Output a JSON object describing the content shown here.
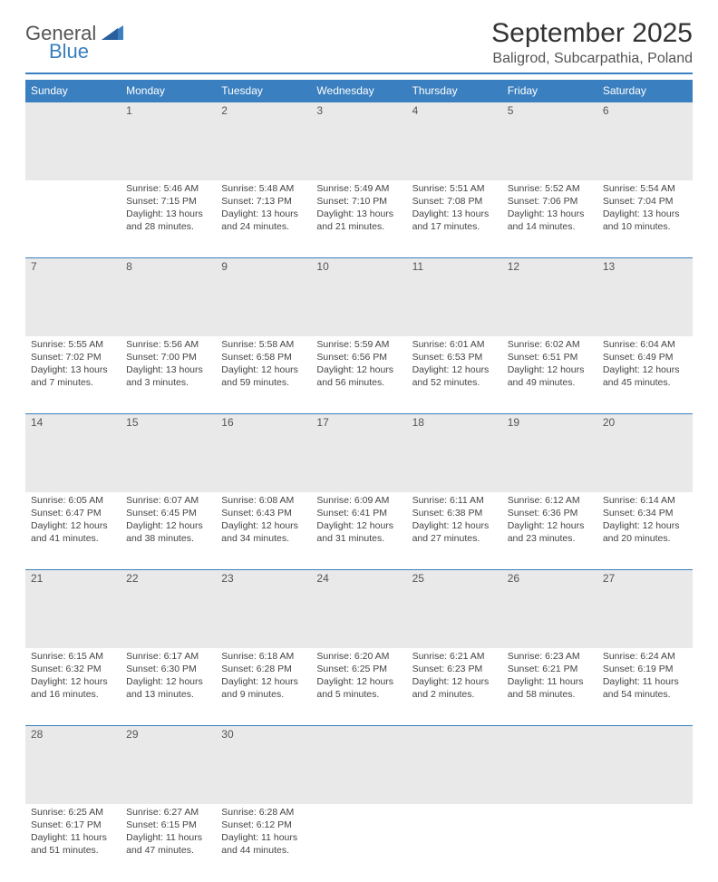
{
  "logo": {
    "text1": "General",
    "text2": "Blue"
  },
  "title": "September 2025",
  "location": "Baligrod, Subcarpathia, Poland",
  "weekdays": [
    "Sunday",
    "Monday",
    "Tuesday",
    "Wednesday",
    "Thursday",
    "Friday",
    "Saturday"
  ],
  "colors": {
    "accent": "#3a7fbf",
    "header_bg": "#3a7fbf",
    "daynum_bg": "#e9e9e9"
  },
  "weeks": [
    [
      null,
      {
        "n": "1",
        "sr": "Sunrise: 5:46 AM",
        "ss": "Sunset: 7:15 PM",
        "dl": "Daylight: 13 hours and 28 minutes."
      },
      {
        "n": "2",
        "sr": "Sunrise: 5:48 AM",
        "ss": "Sunset: 7:13 PM",
        "dl": "Daylight: 13 hours and 24 minutes."
      },
      {
        "n": "3",
        "sr": "Sunrise: 5:49 AM",
        "ss": "Sunset: 7:10 PM",
        "dl": "Daylight: 13 hours and 21 minutes."
      },
      {
        "n": "4",
        "sr": "Sunrise: 5:51 AM",
        "ss": "Sunset: 7:08 PM",
        "dl": "Daylight: 13 hours and 17 minutes."
      },
      {
        "n": "5",
        "sr": "Sunrise: 5:52 AM",
        "ss": "Sunset: 7:06 PM",
        "dl": "Daylight: 13 hours and 14 minutes."
      },
      {
        "n": "6",
        "sr": "Sunrise: 5:54 AM",
        "ss": "Sunset: 7:04 PM",
        "dl": "Daylight: 13 hours and 10 minutes."
      }
    ],
    [
      {
        "n": "7",
        "sr": "Sunrise: 5:55 AM",
        "ss": "Sunset: 7:02 PM",
        "dl": "Daylight: 13 hours and 7 minutes."
      },
      {
        "n": "8",
        "sr": "Sunrise: 5:56 AM",
        "ss": "Sunset: 7:00 PM",
        "dl": "Daylight: 13 hours and 3 minutes."
      },
      {
        "n": "9",
        "sr": "Sunrise: 5:58 AM",
        "ss": "Sunset: 6:58 PM",
        "dl": "Daylight: 12 hours and 59 minutes."
      },
      {
        "n": "10",
        "sr": "Sunrise: 5:59 AM",
        "ss": "Sunset: 6:56 PM",
        "dl": "Daylight: 12 hours and 56 minutes."
      },
      {
        "n": "11",
        "sr": "Sunrise: 6:01 AM",
        "ss": "Sunset: 6:53 PM",
        "dl": "Daylight: 12 hours and 52 minutes."
      },
      {
        "n": "12",
        "sr": "Sunrise: 6:02 AM",
        "ss": "Sunset: 6:51 PM",
        "dl": "Daylight: 12 hours and 49 minutes."
      },
      {
        "n": "13",
        "sr": "Sunrise: 6:04 AM",
        "ss": "Sunset: 6:49 PM",
        "dl": "Daylight: 12 hours and 45 minutes."
      }
    ],
    [
      {
        "n": "14",
        "sr": "Sunrise: 6:05 AM",
        "ss": "Sunset: 6:47 PM",
        "dl": "Daylight: 12 hours and 41 minutes."
      },
      {
        "n": "15",
        "sr": "Sunrise: 6:07 AM",
        "ss": "Sunset: 6:45 PM",
        "dl": "Daylight: 12 hours and 38 minutes."
      },
      {
        "n": "16",
        "sr": "Sunrise: 6:08 AM",
        "ss": "Sunset: 6:43 PM",
        "dl": "Daylight: 12 hours and 34 minutes."
      },
      {
        "n": "17",
        "sr": "Sunrise: 6:09 AM",
        "ss": "Sunset: 6:41 PM",
        "dl": "Daylight: 12 hours and 31 minutes."
      },
      {
        "n": "18",
        "sr": "Sunrise: 6:11 AM",
        "ss": "Sunset: 6:38 PM",
        "dl": "Daylight: 12 hours and 27 minutes."
      },
      {
        "n": "19",
        "sr": "Sunrise: 6:12 AM",
        "ss": "Sunset: 6:36 PM",
        "dl": "Daylight: 12 hours and 23 minutes."
      },
      {
        "n": "20",
        "sr": "Sunrise: 6:14 AM",
        "ss": "Sunset: 6:34 PM",
        "dl": "Daylight: 12 hours and 20 minutes."
      }
    ],
    [
      {
        "n": "21",
        "sr": "Sunrise: 6:15 AM",
        "ss": "Sunset: 6:32 PM",
        "dl": "Daylight: 12 hours and 16 minutes."
      },
      {
        "n": "22",
        "sr": "Sunrise: 6:17 AM",
        "ss": "Sunset: 6:30 PM",
        "dl": "Daylight: 12 hours and 13 minutes."
      },
      {
        "n": "23",
        "sr": "Sunrise: 6:18 AM",
        "ss": "Sunset: 6:28 PM",
        "dl": "Daylight: 12 hours and 9 minutes."
      },
      {
        "n": "24",
        "sr": "Sunrise: 6:20 AM",
        "ss": "Sunset: 6:25 PM",
        "dl": "Daylight: 12 hours and 5 minutes."
      },
      {
        "n": "25",
        "sr": "Sunrise: 6:21 AM",
        "ss": "Sunset: 6:23 PM",
        "dl": "Daylight: 12 hours and 2 minutes."
      },
      {
        "n": "26",
        "sr": "Sunrise: 6:23 AM",
        "ss": "Sunset: 6:21 PM",
        "dl": "Daylight: 11 hours and 58 minutes."
      },
      {
        "n": "27",
        "sr": "Sunrise: 6:24 AM",
        "ss": "Sunset: 6:19 PM",
        "dl": "Daylight: 11 hours and 54 minutes."
      }
    ],
    [
      {
        "n": "28",
        "sr": "Sunrise: 6:25 AM",
        "ss": "Sunset: 6:17 PM",
        "dl": "Daylight: 11 hours and 51 minutes."
      },
      {
        "n": "29",
        "sr": "Sunrise: 6:27 AM",
        "ss": "Sunset: 6:15 PM",
        "dl": "Daylight: 11 hours and 47 minutes."
      },
      {
        "n": "30",
        "sr": "Sunrise: 6:28 AM",
        "ss": "Sunset: 6:12 PM",
        "dl": "Daylight: 11 hours and 44 minutes."
      },
      null,
      null,
      null,
      null
    ]
  ]
}
